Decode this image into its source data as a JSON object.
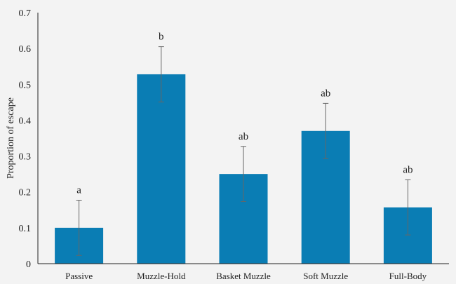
{
  "chart_data": {
    "type": "bar",
    "title": "",
    "xlabel": "",
    "ylabel": "Proportion of escape",
    "ylim": [
      0,
      0.7
    ],
    "yticks": [
      "0",
      "0.1",
      "0.2",
      "0.3",
      "0.4",
      "0.5",
      "0.6",
      "0.7"
    ],
    "categories": [
      "Passive",
      "Muzzle-Hold",
      "Basket Muzzle",
      "Soft Muzzle",
      "Full-Body"
    ],
    "values": [
      0.1,
      0.528,
      0.25,
      0.37,
      0.157
    ],
    "errors": [
      0.077,
      0.077,
      0.077,
      0.077,
      0.077
    ],
    "significance_labels": [
      "a",
      "b",
      "ab",
      "ab",
      "ab"
    ],
    "grid": false,
    "bar_color": "#0a7db4",
    "error_color": "#666666"
  }
}
